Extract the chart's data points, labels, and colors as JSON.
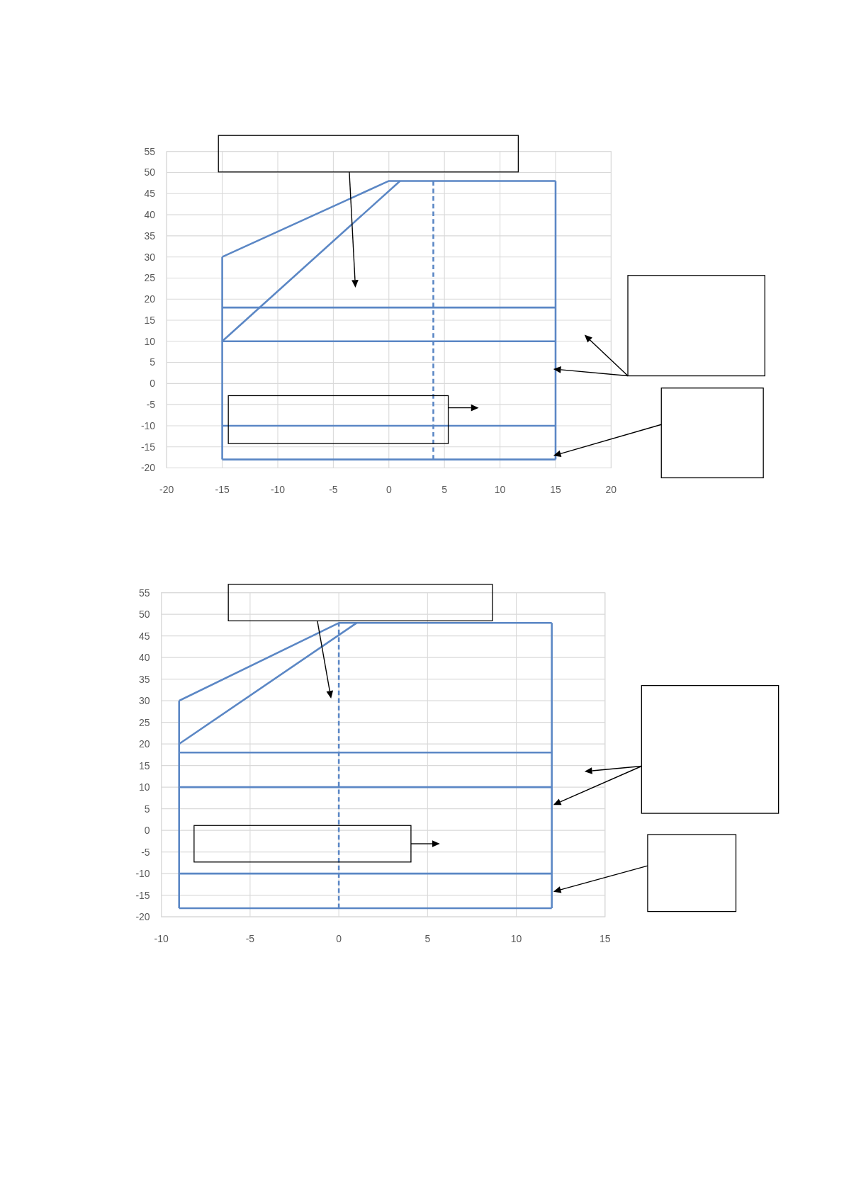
{
  "chart_data": [
    {
      "type": "line",
      "xlim": [
        -20,
        20
      ],
      "xticks": [
        -20,
        -15,
        -10,
        -5,
        0,
        5,
        10,
        15,
        20
      ],
      "ylim": [
        -20,
        55
      ],
      "yticks": [
        -20,
        -15,
        -10,
        -5,
        0,
        5,
        10,
        15,
        20,
        25,
        30,
        35,
        40,
        45,
        50,
        55
      ],
      "grid": true,
      "series": [
        {
          "color": "#5b87c5",
          "x": [
            -15,
            0,
            15
          ],
          "values": [
            30,
            48,
            48
          ]
        },
        {
          "color": "#5b87c5",
          "x": [
            -15,
            1
          ],
          "values": [
            10,
            48
          ]
        },
        {
          "color": "#5b87c5",
          "x": [
            -15,
            15
          ],
          "values": [
            18,
            18
          ]
        },
        {
          "color": "#5b87c5",
          "x": [
            -15,
            15
          ],
          "values": [
            10,
            10
          ]
        },
        {
          "color": "#5b87c5",
          "x": [
            -15,
            15
          ],
          "values": [
            -10,
            -10
          ]
        },
        {
          "color": "#5b87c5",
          "x": [
            -15,
            15
          ],
          "values": [
            -18,
            -18
          ]
        },
        {
          "color": "#5b87c5",
          "x": [
            -15,
            -15
          ],
          "values": [
            -18,
            30
          ]
        },
        {
          "color": "#5b87c5",
          "x": [
            15,
            15
          ],
          "values": [
            -18,
            48
          ]
        },
        {
          "color": "#5b87c5",
          "x": [
            4,
            4
          ],
          "values": [
            -18,
            48
          ],
          "line_style": "dashed"
        }
      ]
    },
    {
      "type": "line",
      "xlim": [
        -10,
        15
      ],
      "xticks": [
        -10,
        -5,
        0,
        5,
        10,
        15
      ],
      "ylim": [
        -20,
        55
      ],
      "yticks": [
        -20,
        -15,
        -10,
        -5,
        0,
        5,
        10,
        15,
        20,
        25,
        30,
        35,
        40,
        45,
        50,
        55
      ],
      "grid": true,
      "series": [
        {
          "color": "#5b87c5",
          "x": [
            -9,
            0,
            12
          ],
          "values": [
            30,
            48,
            48
          ]
        },
        {
          "color": "#5b87c5",
          "x": [
            -9,
            1
          ],
          "values": [
            20,
            48
          ]
        },
        {
          "color": "#5b87c5",
          "x": [
            -9,
            12
          ],
          "values": [
            18,
            18
          ]
        },
        {
          "color": "#5b87c5",
          "x": [
            -9,
            12
          ],
          "values": [
            10,
            10
          ]
        },
        {
          "color": "#5b87c5",
          "x": [
            -9,
            12
          ],
          "values": [
            -10,
            -10
          ]
        },
        {
          "color": "#5b87c5",
          "x": [
            -9,
            12
          ],
          "values": [
            -18,
            -18
          ]
        },
        {
          "color": "#5b87c5",
          "x": [
            -9,
            -9
          ],
          "values": [
            -18,
            30
          ]
        },
        {
          "color": "#5b87c5",
          "x": [
            12,
            12
          ],
          "values": [
            -18,
            48
          ]
        },
        {
          "color": "#5b87c5",
          "x": [
            0,
            0
          ],
          "values": [
            -18,
            48
          ],
          "line_style": "dashed"
        }
      ]
    }
  ]
}
